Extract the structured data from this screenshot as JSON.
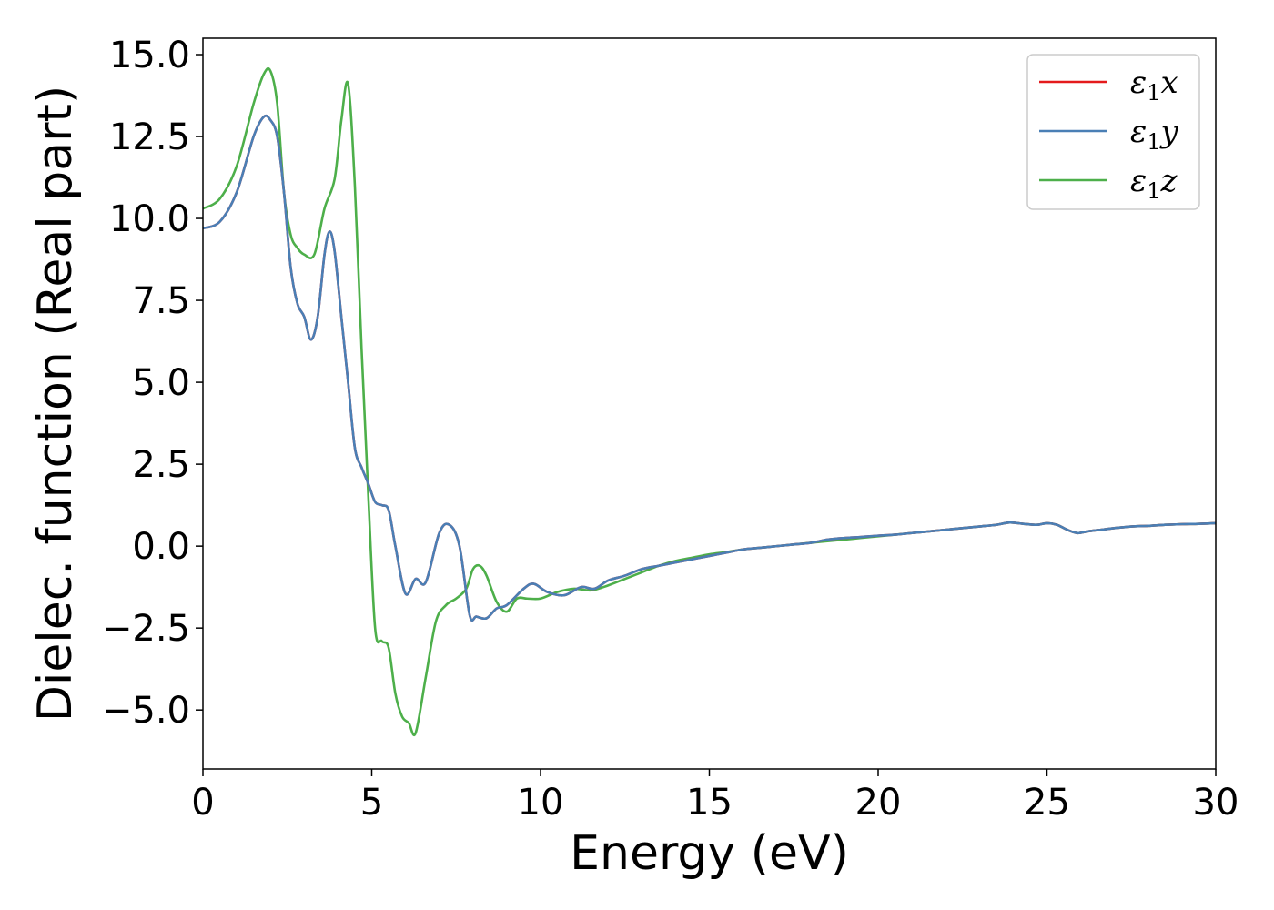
{
  "chart_data": {
    "type": "line",
    "title": "",
    "xlabel": "Energy (eV)",
    "ylabel": "Dielec. function (Real part)",
    "xlim": [
      0,
      30
    ],
    "ylim": [
      -6.8,
      15.5
    ],
    "xticks": [
      0,
      5,
      10,
      15,
      20,
      25,
      30
    ],
    "xtick_labels": [
      "0",
      "5",
      "10",
      "15",
      "20",
      "25",
      "30"
    ],
    "yticks": [
      -5.0,
      -2.5,
      0.0,
      2.5,
      5.0,
      7.5,
      10.0,
      12.5,
      15.0
    ],
    "ytick_labels": [
      "−5.0",
      "−2.5",
      "0.0",
      "2.5",
      "5.0",
      "7.5",
      "10.0",
      "12.5",
      "15.0"
    ],
    "grid": false,
    "legend_position": "top-right",
    "series": [
      {
        "name": "ε₁x",
        "legend_base": "ε",
        "legend_sub": "1",
        "legend_tail": "x",
        "color": "#e41a1c",
        "x": [
          0,
          0.5,
          1.0,
          1.5,
          1.8,
          2.0,
          2.2,
          2.4,
          2.6,
          2.8,
          3.0,
          3.2,
          3.4,
          3.6,
          3.75,
          3.9,
          4.1,
          4.3,
          4.5,
          4.7,
          4.9,
          5.1,
          5.3,
          5.5,
          5.7,
          6.0,
          6.3,
          6.6,
          7.0,
          7.3,
          7.6,
          7.9,
          8.1,
          8.4,
          8.7,
          9.0,
          9.5,
          9.8,
          10.2,
          10.7,
          11.2,
          11.6,
          12.0,
          12.5,
          13.0,
          13.5,
          14.0,
          14.5,
          15.0,
          15.5,
          16.0,
          16.5,
          17.0,
          17.5,
          18.0,
          18.5,
          19.0,
          19.5,
          20.0,
          20.5,
          21.0,
          21.5,
          22.0,
          22.5,
          23.0,
          23.5,
          23.9,
          24.3,
          24.7,
          25.0,
          25.3,
          25.6,
          25.9,
          26.2,
          26.6,
          27.0,
          27.5,
          28.0,
          28.5,
          29.0,
          29.5,
          30.0
        ],
        "y": [
          9.7,
          9.9,
          10.8,
          12.5,
          13.1,
          13.0,
          12.5,
          10.8,
          8.5,
          7.4,
          7.0,
          6.3,
          7.0,
          8.9,
          9.6,
          9.0,
          7.0,
          5.0,
          3.0,
          2.4,
          1.9,
          1.35,
          1.25,
          1.1,
          0.0,
          -1.45,
          -1.0,
          -1.1,
          0.4,
          0.65,
          0.0,
          -2.1,
          -2.15,
          -2.2,
          -1.9,
          -1.8,
          -1.3,
          -1.15,
          -1.4,
          -1.5,
          -1.25,
          -1.3,
          -1.05,
          -0.9,
          -0.7,
          -0.6,
          -0.5,
          -0.4,
          -0.3,
          -0.2,
          -0.1,
          -0.05,
          0.0,
          0.05,
          0.1,
          0.2,
          0.25,
          0.28,
          0.32,
          0.35,
          0.4,
          0.45,
          0.5,
          0.55,
          0.6,
          0.65,
          0.72,
          0.68,
          0.65,
          0.7,
          0.65,
          0.5,
          0.4,
          0.45,
          0.5,
          0.55,
          0.6,
          0.62,
          0.65,
          0.67,
          0.68,
          0.7
        ]
      },
      {
        "name": "ε₁y",
        "legend_base": "ε",
        "legend_sub": "1",
        "legend_tail": "y",
        "color": "#4a7fb5",
        "x": [
          0,
          0.5,
          1.0,
          1.5,
          1.8,
          2.0,
          2.2,
          2.4,
          2.6,
          2.8,
          3.0,
          3.2,
          3.4,
          3.6,
          3.75,
          3.9,
          4.1,
          4.3,
          4.5,
          4.7,
          4.9,
          5.1,
          5.3,
          5.5,
          5.7,
          6.0,
          6.3,
          6.6,
          7.0,
          7.3,
          7.6,
          7.9,
          8.1,
          8.4,
          8.7,
          9.0,
          9.5,
          9.8,
          10.2,
          10.7,
          11.2,
          11.6,
          12.0,
          12.5,
          13.0,
          13.5,
          14.0,
          14.5,
          15.0,
          15.5,
          16.0,
          16.5,
          17.0,
          17.5,
          18.0,
          18.5,
          19.0,
          19.5,
          20.0,
          20.5,
          21.0,
          21.5,
          22.0,
          22.5,
          23.0,
          23.5,
          23.9,
          24.3,
          24.7,
          25.0,
          25.3,
          25.6,
          25.9,
          26.2,
          26.6,
          27.0,
          27.5,
          28.0,
          28.5,
          29.0,
          29.5,
          30.0
        ],
        "y": [
          9.7,
          9.9,
          10.8,
          12.5,
          13.1,
          13.0,
          12.5,
          10.8,
          8.5,
          7.4,
          7.0,
          6.3,
          7.0,
          8.9,
          9.6,
          9.0,
          7.0,
          5.0,
          3.0,
          2.4,
          1.9,
          1.35,
          1.25,
          1.1,
          0.0,
          -1.45,
          -1.0,
          -1.1,
          0.4,
          0.65,
          0.0,
          -2.1,
          -2.15,
          -2.2,
          -1.9,
          -1.8,
          -1.3,
          -1.15,
          -1.4,
          -1.5,
          -1.25,
          -1.3,
          -1.05,
          -0.9,
          -0.7,
          -0.6,
          -0.5,
          -0.4,
          -0.3,
          -0.2,
          -0.1,
          -0.05,
          0.0,
          0.05,
          0.1,
          0.2,
          0.25,
          0.28,
          0.32,
          0.35,
          0.4,
          0.45,
          0.5,
          0.55,
          0.6,
          0.65,
          0.72,
          0.68,
          0.65,
          0.7,
          0.65,
          0.5,
          0.4,
          0.45,
          0.5,
          0.55,
          0.6,
          0.62,
          0.65,
          0.67,
          0.68,
          0.7
        ]
      },
      {
        "name": "ε₁z",
        "legend_base": "ε",
        "legend_sub": "1",
        "legend_tail": "z",
        "color": "#4daf4a",
        "x": [
          0,
          0.5,
          1.0,
          1.5,
          1.8,
          2.0,
          2.2,
          2.4,
          2.6,
          2.8,
          3.0,
          3.3,
          3.6,
          3.9,
          4.1,
          4.3,
          4.5,
          4.7,
          4.9,
          5.1,
          5.3,
          5.5,
          5.7,
          5.9,
          6.1,
          6.3,
          6.6,
          6.9,
          7.2,
          7.5,
          7.8,
          8.0,
          8.2,
          8.4,
          8.7,
          9.0,
          9.3,
          9.6,
          10.0,
          10.5,
          11.0,
          11.5,
          12.0,
          12.5,
          13.0,
          13.5,
          14.0,
          14.5,
          15.0,
          15.5,
          16.0,
          16.5,
          17.0,
          17.5,
          18.0,
          18.5,
          19.0,
          19.5,
          20.0,
          20.5,
          21.0,
          21.5,
          22.0,
          22.5,
          23.0,
          23.5,
          23.9,
          24.3,
          24.7,
          25.0,
          25.3,
          25.6,
          25.9,
          26.2,
          26.6,
          27.0,
          27.5,
          28.0,
          28.5,
          29.0,
          29.5,
          30.0
        ],
        "y": [
          10.3,
          10.6,
          11.6,
          13.5,
          14.4,
          14.5,
          13.5,
          10.8,
          9.5,
          9.1,
          8.9,
          8.9,
          10.3,
          11.2,
          13.0,
          14.1,
          11.0,
          6.0,
          1.5,
          -2.5,
          -2.9,
          -3.1,
          -4.5,
          -5.2,
          -5.4,
          -5.7,
          -4.0,
          -2.3,
          -1.8,
          -1.6,
          -1.3,
          -0.7,
          -0.6,
          -0.9,
          -1.7,
          -2.0,
          -1.6,
          -1.6,
          -1.6,
          -1.4,
          -1.3,
          -1.35,
          -1.2,
          -1.0,
          -0.8,
          -0.6,
          -0.45,
          -0.35,
          -0.25,
          -0.18,
          -0.1,
          -0.05,
          0.0,
          0.05,
          0.1,
          0.15,
          0.2,
          0.25,
          0.3,
          0.35,
          0.4,
          0.45,
          0.5,
          0.55,
          0.6,
          0.65,
          0.72,
          0.68,
          0.65,
          0.7,
          0.65,
          0.5,
          0.4,
          0.45,
          0.5,
          0.55,
          0.6,
          0.62,
          0.65,
          0.67,
          0.68,
          0.7
        ]
      }
    ]
  }
}
